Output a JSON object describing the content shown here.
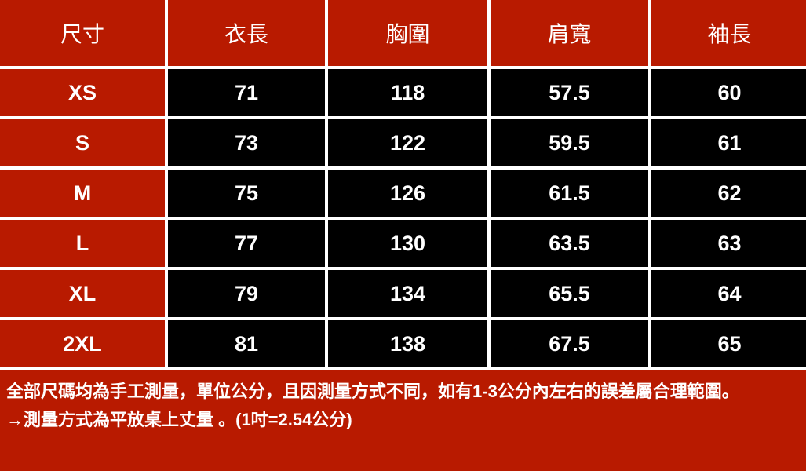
{
  "colors": {
    "header_bg": "#b81a00",
    "value_bg": "#000000",
    "grid_lines": "#ffffff",
    "text": "#ffffff"
  },
  "table": {
    "headers": [
      "尺寸",
      "衣長",
      "胸圍",
      "肩寬",
      "袖長"
    ],
    "rows": [
      [
        "XS",
        "71",
        "118",
        "57.5",
        "60"
      ],
      [
        "S",
        "73",
        "122",
        "59.5",
        "61"
      ],
      [
        "M",
        "75",
        "126",
        "61.5",
        "62"
      ],
      [
        "L",
        "77",
        "130",
        "63.5",
        "63"
      ],
      [
        "XL",
        "79",
        "134",
        "65.5",
        "64"
      ],
      [
        "2XL",
        "81",
        "138",
        "67.5",
        "65"
      ]
    ]
  },
  "footer": {
    "note": "全部尺碼均為手工測量，單位公分，且因測量方式不同，如有1-3公分內左右的誤差屬合理範圍。",
    "method": "→測量方式為平放桌上丈量 。(1吋=2.54公分)"
  }
}
